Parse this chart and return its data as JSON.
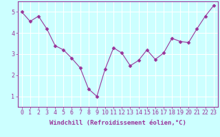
{
  "x": [
    0,
    1,
    2,
    3,
    4,
    5,
    6,
    7,
    8,
    9,
    10,
    11,
    12,
    13,
    14,
    15,
    16,
    17,
    18,
    19,
    20,
    21,
    22,
    23
  ],
  "y": [
    5.0,
    4.55,
    4.8,
    4.2,
    3.4,
    3.2,
    2.8,
    2.35,
    1.35,
    1.0,
    2.3,
    3.3,
    3.05,
    2.45,
    2.7,
    3.2,
    2.75,
    3.05,
    3.75,
    3.6,
    3.55,
    4.2,
    4.8,
    5.3
  ],
  "line_color": "#993399",
  "marker": "D",
  "marker_size": 2.5,
  "bg_color": "#ccffff",
  "grid_color": "#ffffff",
  "xlabel": "Windchill (Refroidissement éolien,°C)",
  "ylabel": "",
  "ylim": [
    0.5,
    5.5
  ],
  "xlim": [
    -0.5,
    23.5
  ],
  "yticks": [
    1,
    2,
    3,
    4,
    5
  ],
  "xticks": [
    0,
    1,
    2,
    3,
    4,
    5,
    6,
    7,
    8,
    9,
    10,
    11,
    12,
    13,
    14,
    15,
    16,
    17,
    18,
    19,
    20,
    21,
    22,
    23
  ],
  "tick_color": "#993399",
  "label_color": "#993399",
  "label_fontsize": 6.5,
  "tick_fontsize": 6.0,
  "linewidth": 0.8
}
